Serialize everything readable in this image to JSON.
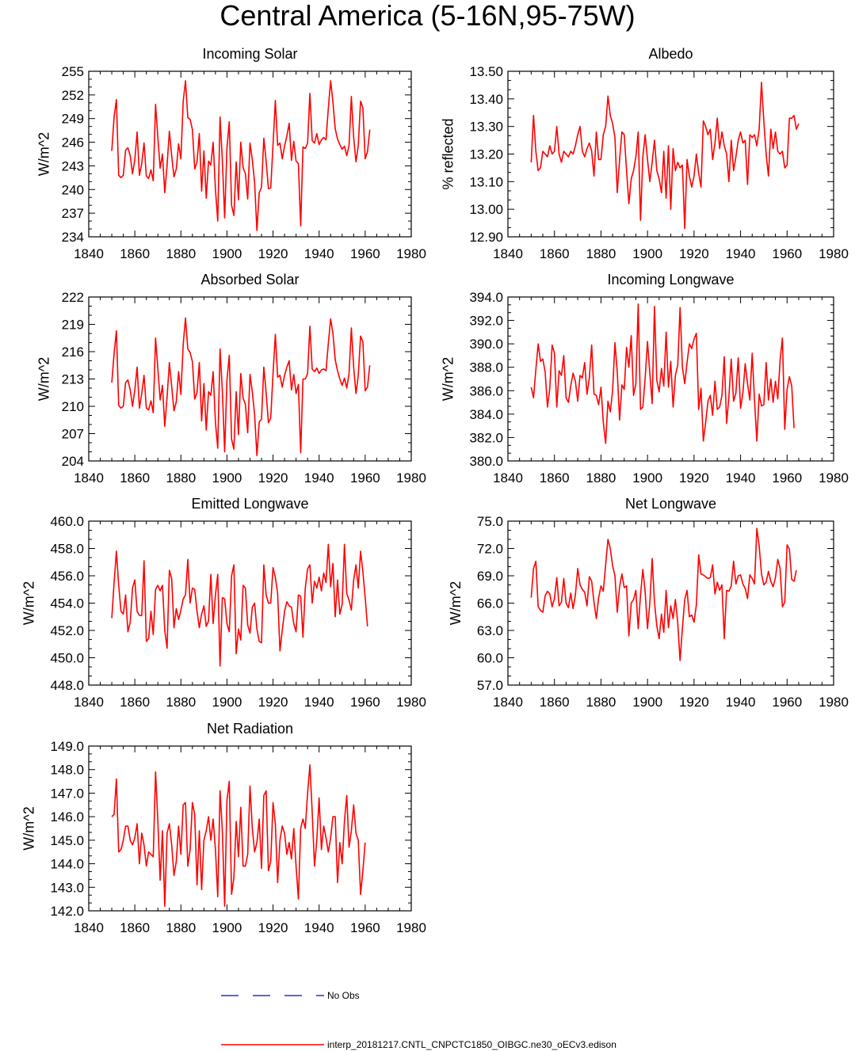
{
  "title": "Central America (5-16N,95-75W)",
  "legend": {
    "obs_label": "No Obs",
    "obs_color": "#0000cc",
    "model_label": "interp_20181217.CNTL_CNPCTC1850_OIBGC.ne30_oECv3.edison",
    "model_color": "#ff0000"
  },
  "x_ticks": [
    "1840",
    "1860",
    "1880",
    "1900",
    "1920",
    "1940",
    "1960",
    "1980"
  ],
  "chart_data": [
    {
      "type": "line",
      "title": "Incoming Solar",
      "ylabel": "W/m^2",
      "xlim": [
        1840,
        1980
      ],
      "ylim": [
        234,
        255
      ],
      "yticks": [
        "234",
        "237",
        "240",
        "243",
        "246",
        "249",
        "252",
        "255"
      ],
      "x_start": 1850,
      "values": [
        244.9,
        249.2,
        251.4,
        241.8,
        241.5,
        241.8,
        245.0,
        245.3,
        244.3,
        242.0,
        243.8,
        247.3,
        241.8,
        243.3,
        245.9,
        241.7,
        241.4,
        242.5,
        241.1,
        250.8,
        246.6,
        242.7,
        244.5,
        239.6,
        243.1,
        247.4,
        244.3,
        241.6,
        242.6,
        245.8,
        243.9,
        251.2,
        253.8,
        249.1,
        248.9,
        247.6,
        242.6,
        243.5,
        247.1,
        239.8,
        244.9,
        238.9,
        243.6,
        243.1,
        246.0,
        240.0,
        236.0,
        249.2,
        243.7,
        236.4,
        245.3,
        248.6,
        238.0,
        236.7,
        243.5,
        238.7,
        246.0,
        242.8,
        242.0,
        238.8,
        245.9,
        243.8,
        240.9,
        234.8,
        239.6,
        240.3,
        246.5,
        243.6,
        240.1,
        240.2,
        245.7,
        251.3,
        245.6,
        245.9,
        243.9,
        245.5,
        246.8,
        248.4,
        243.7,
        246.1,
        243.6,
        243.3,
        235.4,
        245.4,
        245.2,
        245.9,
        252.2,
        246.2,
        245.9,
        247.1,
        245.7,
        246.3,
        246.6,
        246.3,
        250.3,
        253.8,
        251.1,
        247.7,
        246.4,
        245.7,
        245.1,
        245.5,
        244.3,
        245.6,
        251.8,
        246.6,
        243.5,
        245.6,
        251.2,
        250.4,
        243.9,
        244.8,
        247.6
      ]
    },
    {
      "type": "line",
      "title": "Albedo",
      "ylabel": "% reflected",
      "xlim": [
        1840,
        1980
      ],
      "ylim": [
        12.9,
        13.5
      ],
      "yticks": [
        "12.90",
        "13.00",
        "13.10",
        "13.20",
        "13.30",
        "13.40",
        "13.50"
      ],
      "x_start": 1850,
      "values": [
        13.17,
        13.34,
        13.21,
        13.14,
        13.15,
        13.21,
        13.2,
        13.19,
        13.23,
        13.2,
        13.21,
        13.3,
        13.2,
        13.17,
        13.21,
        13.2,
        13.19,
        13.21,
        13.2,
        13.23,
        13.27,
        13.3,
        13.21,
        13.19,
        13.22,
        13.24,
        13.21,
        13.12,
        13.28,
        13.18,
        13.18,
        13.27,
        13.3,
        13.41,
        13.34,
        13.31,
        13.26,
        13.06,
        13.18,
        13.28,
        13.27,
        13.14,
        13.02,
        13.11,
        13.14,
        13.19,
        13.28,
        12.96,
        13.19,
        13.27,
        13.18,
        13.1,
        13.17,
        13.25,
        13.14,
        13.11,
        13.06,
        13.21,
        13.04,
        13.23,
        13.0,
        13.22,
        13.14,
        13.17,
        13.15,
        13.16,
        12.93,
        13.18,
        13.12,
        13.08,
        13.12,
        13.2,
        13.13,
        13.08,
        13.32,
        13.3,
        13.27,
        13.29,
        13.18,
        13.24,
        13.33,
        13.22,
        13.28,
        13.23,
        13.2,
        13.1,
        13.25,
        13.14,
        13.19,
        13.25,
        13.28,
        13.24,
        13.25,
        13.09,
        13.27,
        13.26,
        13.27,
        13.23,
        13.29,
        13.46,
        13.32,
        13.2,
        13.12,
        13.29,
        13.22,
        13.28,
        13.21,
        13.2,
        13.21,
        13.15,
        13.16,
        13.33,
        13.33,
        13.34,
        13.29,
        13.31
      ]
    },
    {
      "type": "line",
      "title": "Absorbed Solar",
      "ylabel": "W/m^2",
      "xlim": [
        1840,
        1980
      ],
      "ylim": [
        204,
        222
      ],
      "yticks": [
        "204",
        "207",
        "210",
        "213",
        "216",
        "219",
        "222"
      ],
      "x_start": 1850,
      "values": [
        212.6,
        215.8,
        218.3,
        210.1,
        209.8,
        210.0,
        212.6,
        212.9,
        211.8,
        210.0,
        211.8,
        214.3,
        209.8,
        211.4,
        213.4,
        209.8,
        209.6,
        210.6,
        209.3,
        217.5,
        214.1,
        210.7,
        212.3,
        207.8,
        211.0,
        214.8,
        212.2,
        209.5,
        210.5,
        213.8,
        211.3,
        216.8,
        219.7,
        216.3,
        215.9,
        214.9,
        210.8,
        211.5,
        214.8,
        208.4,
        212.5,
        207.4,
        211.6,
        211.2,
        213.8,
        208.2,
        205.4,
        216.3,
        211.7,
        205.0,
        212.9,
        215.6,
        206.4,
        205.3,
        211.6,
        206.9,
        213.6,
        210.9,
        210.2,
        207.1,
        213.5,
        211.6,
        209.1,
        204.6,
        208.3,
        208.6,
        214.3,
        211.5,
        208.2,
        208.7,
        213.6,
        217.9,
        213.2,
        213.4,
        212.1,
        213.4,
        214.3,
        215.0,
        211.8,
        213.5,
        211.4,
        212.4,
        204.9,
        213.0,
        213.0,
        213.6,
        218.8,
        214.1,
        213.8,
        214.2,
        213.6,
        214.0,
        214.1,
        213.9,
        216.9,
        219.6,
        218.0,
        215.1,
        213.9,
        213.0,
        212.3,
        213.1,
        212.0,
        213.6,
        218.6,
        214.3,
        211.4,
        213.4,
        217.7,
        217.1,
        211.7,
        212.1,
        214.5
      ]
    },
    {
      "type": "line",
      "title": "Incoming Longwave",
      "ylabel": "W/m^2",
      "xlim": [
        1840,
        1980
      ],
      "ylim": [
        380,
        394
      ],
      "yticks": [
        "380.0",
        "382.0",
        "384.0",
        "386.0",
        "388.0",
        "390.0",
        "392.0",
        "394.0"
      ],
      "x_start": 1850,
      "values": [
        386.3,
        385.4,
        387.8,
        390.0,
        388.5,
        388.7,
        387.6,
        384.6,
        386.2,
        389.9,
        389.2,
        384.6,
        387.7,
        387.3,
        389.0,
        385.4,
        385.0,
        386.4,
        387.5,
        386.8,
        385.1,
        387.3,
        387.1,
        388.4,
        385.7,
        387.1,
        389.9,
        385.7,
        385.6,
        384.8,
        386.3,
        383.3,
        381.5,
        385.1,
        384.2,
        386.0,
        390.1,
        387.6,
        383.5,
        386.5,
        386.1,
        389.7,
        388.0,
        390.7,
        385.6,
        386.6,
        393.4,
        384.4,
        384.6,
        387.1,
        390.2,
        387.5,
        384.9,
        393.2,
        386.9,
        385.9,
        387.9,
        386.4,
        391.0,
        386.3,
        388.5,
        384.6,
        387.3,
        388.2,
        393.1,
        388.0,
        386.6,
        388.4,
        390.0,
        389.6,
        390.4,
        390.9,
        384.4,
        386.2,
        381.7,
        383.3,
        385.1,
        385.6,
        383.9,
        386.8,
        384.4,
        384.6,
        385.6,
        388.9,
        383.2,
        385.5,
        388.7,
        385.1,
        385.8,
        388.8,
        384.5,
        385.8,
        388.3,
        386.6,
        385.2,
        389.2,
        385.2,
        381.7,
        385.7,
        384.7,
        384.8,
        388.4,
        385.2,
        387.0,
        385.0,
        386.8,
        385.3,
        388.6,
        390.5,
        382.7,
        386.1,
        387.2,
        386.4,
        382.8
      ]
    },
    {
      "type": "line",
      "title": "Emitted Longwave",
      "ylabel": "W/m^2",
      "xlim": [
        1840,
        1980
      ],
      "ylim": [
        448,
        460
      ],
      "yticks": [
        "448.0",
        "450.0",
        "452.0",
        "454.0",
        "456.0",
        "458.0",
        "460.0"
      ],
      "x_start": 1850,
      "values": [
        452.9,
        455.5,
        457.8,
        455.3,
        453.4,
        453.2,
        454.6,
        451.9,
        452.6,
        455.1,
        455.7,
        453.4,
        453.1,
        453.1,
        457.1,
        451.2,
        451.4,
        453.4,
        451.7,
        455.0,
        455.3,
        454.9,
        455.3,
        452.0,
        450.7,
        456.4,
        455.8,
        452.2,
        453.6,
        452.8,
        453.5,
        454.3,
        454.6,
        457.2,
        454.0,
        455.1,
        455.0,
        453.4,
        452.2,
        453.2,
        453.8,
        452.3,
        452.7,
        456.1,
        452.5,
        454.6,
        456.1,
        449.4,
        454.4,
        454.3,
        452.5,
        451.9,
        456.0,
        456.8,
        450.3,
        452.1,
        451.3,
        455.3,
        455.1,
        452.4,
        451.8,
        453.7,
        454.0,
        452.1,
        451.2,
        451.1,
        456.8,
        454.6,
        454.0,
        454.0,
        456.6,
        455.9,
        454.7,
        450.5,
        452.0,
        453.4,
        454.1,
        453.8,
        453.7,
        452.5,
        451.9,
        454.6,
        454.5,
        451.5,
        455.1,
        456.5,
        456.8,
        454.0,
        455.6,
        455.1,
        455.9,
        454.9,
        456.2,
        455.5,
        458.3,
        455.2,
        456.9,
        453.0,
        455.7,
        453.2,
        453.9,
        458.3,
        454.7,
        454.2,
        453.5,
        455.7,
        456.8,
        455.1,
        457.8,
        456.3,
        454.4,
        452.3
      ]
    },
    {
      "type": "line",
      "title": "Net Longwave",
      "ylabel": "W/m^2",
      "xlim": [
        1840,
        1980
      ],
      "ylim": [
        57,
        75
      ],
      "yticks": [
        "57.0",
        "60.0",
        "63.0",
        "66.0",
        "69.0",
        "72.0",
        "75.0"
      ],
      "x_start": 1850,
      "values": [
        66.6,
        69.8,
        70.6,
        65.6,
        65.2,
        65.0,
        66.8,
        67.3,
        67.0,
        65.6,
        66.5,
        68.8,
        65.7,
        66.1,
        68.7,
        66.0,
        65.5,
        67.1,
        65.4,
        66.9,
        69.8,
        68.0,
        67.5,
        67.2,
        65.7,
        68.9,
        68.4,
        66.1,
        64.3,
        66.6,
        67.9,
        67.3,
        70.2,
        73.0,
        72.0,
        70.1,
        69.0,
        65.0,
        67.8,
        69.2,
        67.7,
        67.9,
        62.4,
        66.0,
        66.4,
        67.4,
        63.2,
        66.9,
        69.7,
        67.2,
        63.2,
        66.0,
        70.9,
        66.1,
        63.5,
        62.1,
        64.8,
        62.8,
        67.4,
        63.3,
        65.7,
        64.3,
        66.4,
        63.8,
        59.7,
        63.2,
        66.4,
        67.4,
        64.5,
        64.7,
        63.9,
        65.8,
        71.3,
        69.2,
        69.1,
        68.9,
        68.7,
        68.8,
        70.2,
        67.0,
        68.3,
        67.4,
        68.0,
        62.1,
        67.4,
        67.3,
        67.9,
        70.6,
        68.1,
        69.0,
        69.1,
        68.1,
        67.6,
        66.5,
        69.1,
        68.7,
        68.1,
        74.2,
        72.3,
        69.2,
        68.0,
        68.3,
        69.5,
        68.4,
        67.8,
        68.8,
        70.8,
        69.8,
        65.6,
        66.1,
        72.4,
        71.9,
        68.6,
        68.4,
        69.6
      ]
    },
    {
      "type": "line",
      "title": "Net Radiation",
      "ylabel": "W/m^2",
      "xlim": [
        1840,
        1980
      ],
      "ylim": [
        142,
        149
      ],
      "yticks": [
        "142.0",
        "143.0",
        "144.0",
        "145.0",
        "146.0",
        "147.0",
        "148.0",
        "149.0"
      ],
      "x_start": 1850,
      "values": [
        146.0,
        146.1,
        147.6,
        144.5,
        144.6,
        145.0,
        145.6,
        145.6,
        145.0,
        144.8,
        145.1,
        145.7,
        144.0,
        145.3,
        144.8,
        143.9,
        144.5,
        144.4,
        144.3,
        147.9,
        145.8,
        143.3,
        145.4,
        142.2,
        145.3,
        145.7,
        144.8,
        143.5,
        144.1,
        145.6,
        144.4,
        146.5,
        146.6,
        143.9,
        144.6,
        146.6,
        146.1,
        143.1,
        145.4,
        142.9,
        145.0,
        145.4,
        146.0,
        145.0,
        145.9,
        144.6,
        142.6,
        147.1,
        145.4,
        142.2,
        146.7,
        147.5,
        142.7,
        143.4,
        145.8,
        144.3,
        146.4,
        143.9,
        143.9,
        144.4,
        147.3,
        145.5,
        144.5,
        144.9,
        145.9,
        143.8,
        146.9,
        147.1,
        143.7,
        144.1,
        146.6,
        145.7,
        143.2,
        145.0,
        145.6,
        145.3,
        144.4,
        144.9,
        144.2,
        145.5,
        143.9,
        142.5,
        145.5,
        145.9,
        145.5,
        147.0,
        148.2,
        146.2,
        143.9,
        145.0,
        146.8,
        144.6,
        145.6,
        145.1,
        144.5,
        145.1,
        146.0,
        146.0,
        143.2,
        144.9,
        144.0,
        145.8,
        146.9,
        144.7,
        145.4,
        146.5,
        145.3,
        145.0,
        142.7,
        143.7,
        144.9
      ]
    }
  ]
}
